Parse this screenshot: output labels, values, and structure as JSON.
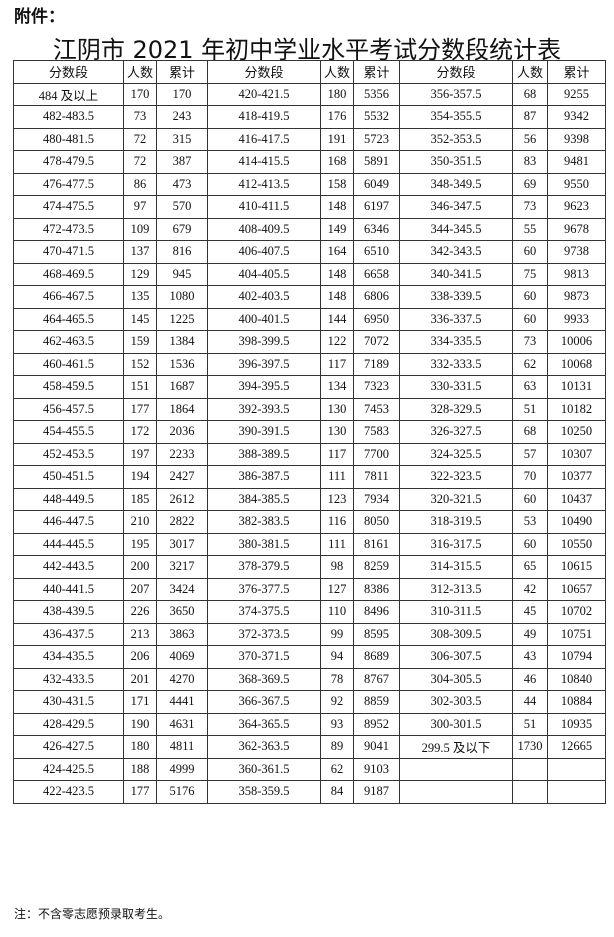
{
  "attachment_label": "附件：",
  "title": "江阴市 2021 年初中学业水平考试分数段统计表",
  "table": {
    "headers": [
      "分数段",
      "人数",
      "累计",
      "分数段",
      "人数",
      "累计",
      "分数段",
      "人数",
      "累计"
    ],
    "rows": [
      [
        "484 及以上",
        "170",
        "170",
        "420-421.5",
        "180",
        "5356",
        "356-357.5",
        "68",
        "9255"
      ],
      [
        "482-483.5",
        "73",
        "243",
        "418-419.5",
        "176",
        "5532",
        "354-355.5",
        "87",
        "9342"
      ],
      [
        "480-481.5",
        "72",
        "315",
        "416-417.5",
        "191",
        "5723",
        "352-353.5",
        "56",
        "9398"
      ],
      [
        "478-479.5",
        "72",
        "387",
        "414-415.5",
        "168",
        "5891",
        "350-351.5",
        "83",
        "9481"
      ],
      [
        "476-477.5",
        "86",
        "473",
        "412-413.5",
        "158",
        "6049",
        "348-349.5",
        "69",
        "9550"
      ],
      [
        "474-475.5",
        "97",
        "570",
        "410-411.5",
        "148",
        "6197",
        "346-347.5",
        "73",
        "9623"
      ],
      [
        "472-473.5",
        "109",
        "679",
        "408-409.5",
        "149",
        "6346",
        "344-345.5",
        "55",
        "9678"
      ],
      [
        "470-471.5",
        "137",
        "816",
        "406-407.5",
        "164",
        "6510",
        "342-343.5",
        "60",
        "9738"
      ],
      [
        "468-469.5",
        "129",
        "945",
        "404-405.5",
        "148",
        "6658",
        "340-341.5",
        "75",
        "9813"
      ],
      [
        "466-467.5",
        "135",
        "1080",
        "402-403.5",
        "148",
        "6806",
        "338-339.5",
        "60",
        "9873"
      ],
      [
        "464-465.5",
        "145",
        "1225",
        "400-401.5",
        "144",
        "6950",
        "336-337.5",
        "60",
        "9933"
      ],
      [
        "462-463.5",
        "159",
        "1384",
        "398-399.5",
        "122",
        "7072",
        "334-335.5",
        "73",
        "10006"
      ],
      [
        "460-461.5",
        "152",
        "1536",
        "396-397.5",
        "117",
        "7189",
        "332-333.5",
        "62",
        "10068"
      ],
      [
        "458-459.5",
        "151",
        "1687",
        "394-395.5",
        "134",
        "7323",
        "330-331.5",
        "63",
        "10131"
      ],
      [
        "456-457.5",
        "177",
        "1864",
        "392-393.5",
        "130",
        "7453",
        "328-329.5",
        "51",
        "10182"
      ],
      [
        "454-455.5",
        "172",
        "2036",
        "390-391.5",
        "130",
        "7583",
        "326-327.5",
        "68",
        "10250"
      ],
      [
        "452-453.5",
        "197",
        "2233",
        "388-389.5",
        "117",
        "7700",
        "324-325.5",
        "57",
        "10307"
      ],
      [
        "450-451.5",
        "194",
        "2427",
        "386-387.5",
        "111",
        "7811",
        "322-323.5",
        "70",
        "10377"
      ],
      [
        "448-449.5",
        "185",
        "2612",
        "384-385.5",
        "123",
        "7934",
        "320-321.5",
        "60",
        "10437"
      ],
      [
        "446-447.5",
        "210",
        "2822",
        "382-383.5",
        "116",
        "8050",
        "318-319.5",
        "53",
        "10490"
      ],
      [
        "444-445.5",
        "195",
        "3017",
        "380-381.5",
        "111",
        "8161",
        "316-317.5",
        "60",
        "10550"
      ],
      [
        "442-443.5",
        "200",
        "3217",
        "378-379.5",
        "98",
        "8259",
        "314-315.5",
        "65",
        "10615"
      ],
      [
        "440-441.5",
        "207",
        "3424",
        "376-377.5",
        "127",
        "8386",
        "312-313.5",
        "42",
        "10657"
      ],
      [
        "438-439.5",
        "226",
        "3650",
        "374-375.5",
        "110",
        "8496",
        "310-311.5",
        "45",
        "10702"
      ],
      [
        "436-437.5",
        "213",
        "3863",
        "372-373.5",
        "99",
        "8595",
        "308-309.5",
        "49",
        "10751"
      ],
      [
        "434-435.5",
        "206",
        "4069",
        "370-371.5",
        "94",
        "8689",
        "306-307.5",
        "43",
        "10794"
      ],
      [
        "432-433.5",
        "201",
        "4270",
        "368-369.5",
        "78",
        "8767",
        "304-305.5",
        "46",
        "10840"
      ],
      [
        "430-431.5",
        "171",
        "4441",
        "366-367.5",
        "92",
        "8859",
        "302-303.5",
        "44",
        "10884"
      ],
      [
        "428-429.5",
        "190",
        "4631",
        "364-365.5",
        "93",
        "8952",
        "300-301.5",
        "51",
        "10935"
      ],
      [
        "426-427.5",
        "180",
        "4811",
        "362-363.5",
        "89",
        "9041",
        "299.5 及以下",
        "1730",
        "12665"
      ],
      [
        "424-425.5",
        "188",
        "4999",
        "360-361.5",
        "62",
        "9103",
        "",
        "",
        ""
      ],
      [
        "422-423.5",
        "177",
        "5176",
        "358-359.5",
        "84",
        "9187",
        "",
        "",
        ""
      ]
    ]
  },
  "note": "注：不含零志愿预录取考生。"
}
